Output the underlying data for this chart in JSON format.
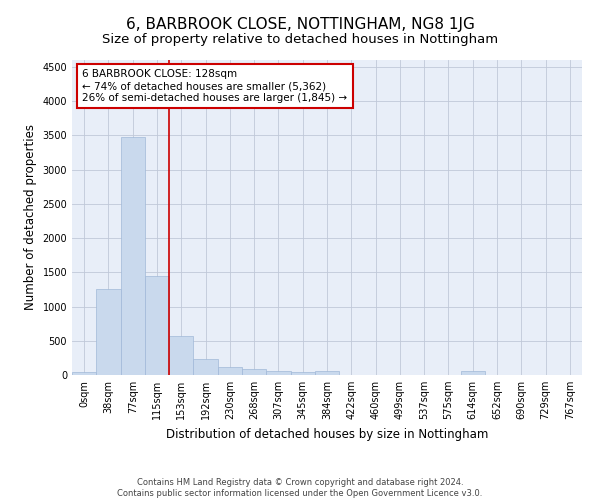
{
  "title": "6, BARBROOK CLOSE, NOTTINGHAM, NG8 1JG",
  "subtitle": "Size of property relative to detached houses in Nottingham",
  "xlabel": "Distribution of detached houses by size in Nottingham",
  "ylabel": "Number of detached properties",
  "bin_labels": [
    "0sqm",
    "38sqm",
    "77sqm",
    "115sqm",
    "153sqm",
    "192sqm",
    "230sqm",
    "268sqm",
    "307sqm",
    "345sqm",
    "384sqm",
    "422sqm",
    "460sqm",
    "499sqm",
    "537sqm",
    "575sqm",
    "614sqm",
    "652sqm",
    "690sqm",
    "729sqm",
    "767sqm"
  ],
  "bar_values": [
    40,
    1260,
    3470,
    1450,
    570,
    240,
    115,
    85,
    55,
    40,
    55,
    0,
    0,
    0,
    0,
    0,
    60,
    0,
    0,
    0,
    0
  ],
  "bar_color": "#c9d9ed",
  "bar_edge_color": "#a0b8d8",
  "vline_x": 3.5,
  "vline_color": "#cc0000",
  "annotation_text": "6 BARBROOK CLOSE: 128sqm\n← 74% of detached houses are smaller (5,362)\n26% of semi-detached houses are larger (1,845) →",
  "annotation_box_color": "#cc0000",
  "ylim": [
    0,
    4600
  ],
  "yticks": [
    0,
    500,
    1000,
    1500,
    2000,
    2500,
    3000,
    3500,
    4000,
    4500
  ],
  "background_color": "#ffffff",
  "plot_bg_color": "#e8eef8",
  "grid_color": "#c0c8d8",
  "footnote": "Contains HM Land Registry data © Crown copyright and database right 2024.\nContains public sector information licensed under the Open Government Licence v3.0.",
  "title_fontsize": 11,
  "subtitle_fontsize": 9.5,
  "xlabel_fontsize": 8.5,
  "ylabel_fontsize": 8.5,
  "annot_fontsize": 7.5,
  "tick_fontsize": 7
}
